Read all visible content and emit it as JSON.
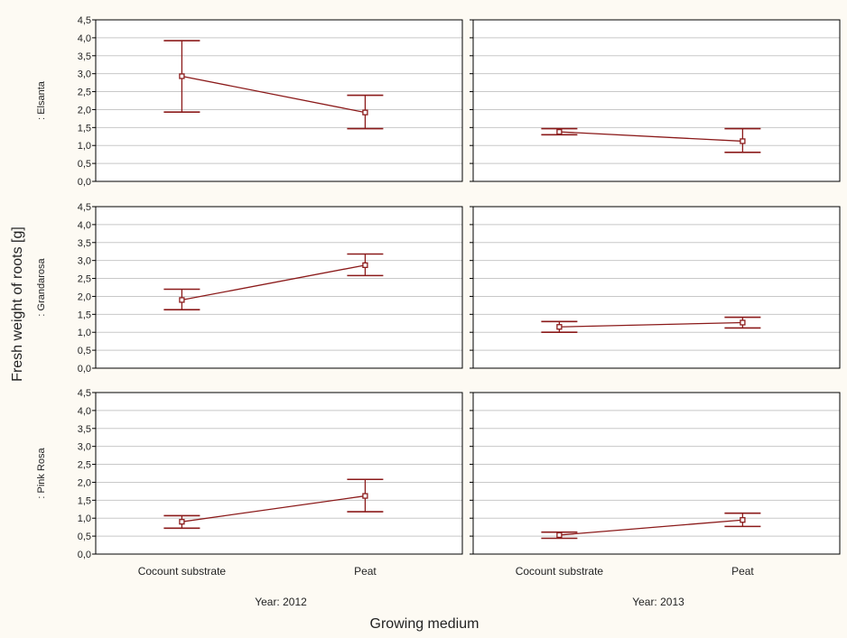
{
  "colors": {
    "background": "#fdfaf3",
    "panel": "#ffffff",
    "grid": "#c8c8c8",
    "frame": "#000000",
    "series": "#8b1a1a"
  },
  "chart_data": {
    "type": "line",
    "xlabel": "Growing medium",
    "ylabel": "Fresh weight of roots [g]",
    "ylim": [
      0,
      4.5
    ],
    "y_ticks": [
      "0,0",
      "0,5",
      "1,0",
      "1,5",
      "2,0",
      "2,5",
      "3,0",
      "3,5",
      "4,0",
      "4,5"
    ],
    "grid": true,
    "categories": [
      "Cocount substrate",
      "Peat"
    ],
    "columns": [
      "Year: 2012",
      "Year: 2013"
    ],
    "rows": [
      ": Elsanta",
      ": Grandarosa",
      ": Pink Rosa"
    ],
    "panels": [
      {
        "row": ": Elsanta",
        "column": "Year: 2012",
        "values": [
          2.93,
          1.92
        ],
        "lower": [
          1.93,
          1.47
        ],
        "upper": [
          3.92,
          2.4
        ]
      },
      {
        "row": ": Elsanta",
        "column": "Year: 2013",
        "values": [
          1.38,
          1.12
        ],
        "lower": [
          1.3,
          0.81
        ],
        "upper": [
          1.47,
          1.47
        ]
      },
      {
        "row": ": Grandarosa",
        "column": "Year: 2012",
        "values": [
          1.9,
          2.87
        ],
        "lower": [
          1.63,
          2.58
        ],
        "upper": [
          2.2,
          3.18
        ]
      },
      {
        "row": ": Grandarosa",
        "column": "Year: 2013",
        "values": [
          1.15,
          1.27
        ],
        "lower": [
          1.0,
          1.12
        ],
        "upper": [
          1.3,
          1.42
        ]
      },
      {
        "row": ": Pink Rosa",
        "column": "Year: 2012",
        "values": [
          0.9,
          1.62
        ],
        "lower": [
          0.72,
          1.18
        ],
        "upper": [
          1.07,
          2.08
        ]
      },
      {
        "row": ": Pink Rosa",
        "column": "Year: 2013",
        "values": [
          0.53,
          0.95
        ],
        "lower": [
          0.44,
          0.77
        ],
        "upper": [
          0.61,
          1.14
        ]
      }
    ]
  }
}
